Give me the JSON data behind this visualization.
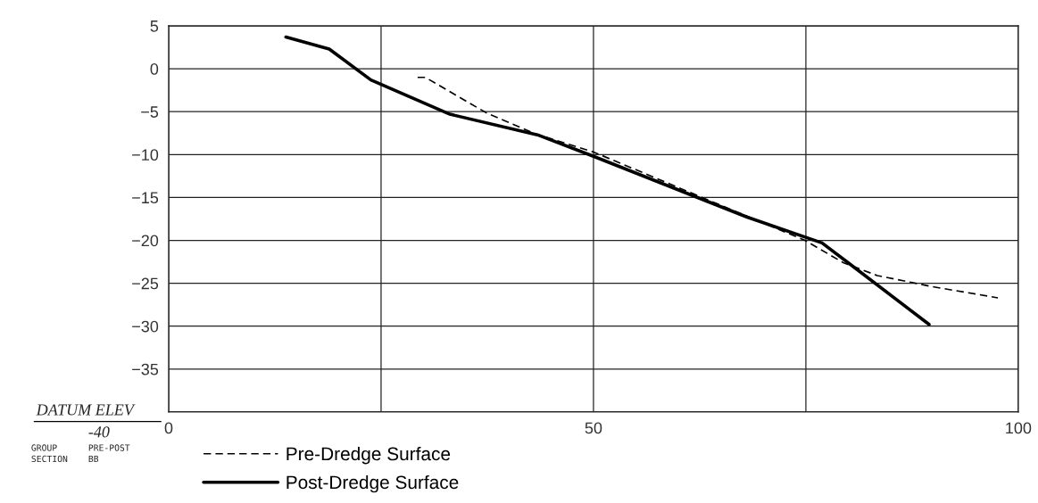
{
  "chart_data": {
    "type": "line",
    "series": [
      {
        "name": "Pre-Dredge Surface",
        "color": "#000000",
        "line_style": "dashed",
        "x": [
          29.3,
          30.2,
          37.5,
          43.2,
          50,
          65.2,
          74.9,
          79.4,
          83.4,
          89.9,
          97.6
        ],
        "values": [
          -1.0,
          -1.0,
          -5.2,
          -7.6,
          -9.7,
          -16.0,
          -20.0,
          -22.6,
          -24.1,
          -25.4,
          -26.7
        ]
      },
      {
        "name": "Post-Dredge Surface",
        "color": "#000000",
        "line_style": "solid",
        "x": [
          13.8,
          18.9,
          23.8,
          33.1,
          43.4,
          50,
          68.1,
          76.9,
          80.1,
          89.5
        ],
        "values": [
          3.7,
          2.3,
          -1.3,
          -5.3,
          -7.7,
          -10.2,
          -17.3,
          -20.3,
          -22.7,
          -29.8
        ]
      }
    ],
    "xlim": [
      0,
      100
    ],
    "xticks": [
      0,
      {
        "value": 25,
        "label": null
      },
      50,
      {
        "value": 75,
        "label": null
      },
      100
    ],
    "ylim": [
      -40,
      5
    ],
    "yticks": [
      {
        "value": -40,
        "label": null
      },
      -35,
      -30,
      -25,
      -20,
      -15,
      -10,
      -5,
      0,
      5
    ],
    "grid": true,
    "legend": "bottom",
    "annotations": [
      "DATUM ELEV",
      "-40",
      "GROUP",
      "PRE-POST",
      "SECTION",
      "BB"
    ]
  }
}
